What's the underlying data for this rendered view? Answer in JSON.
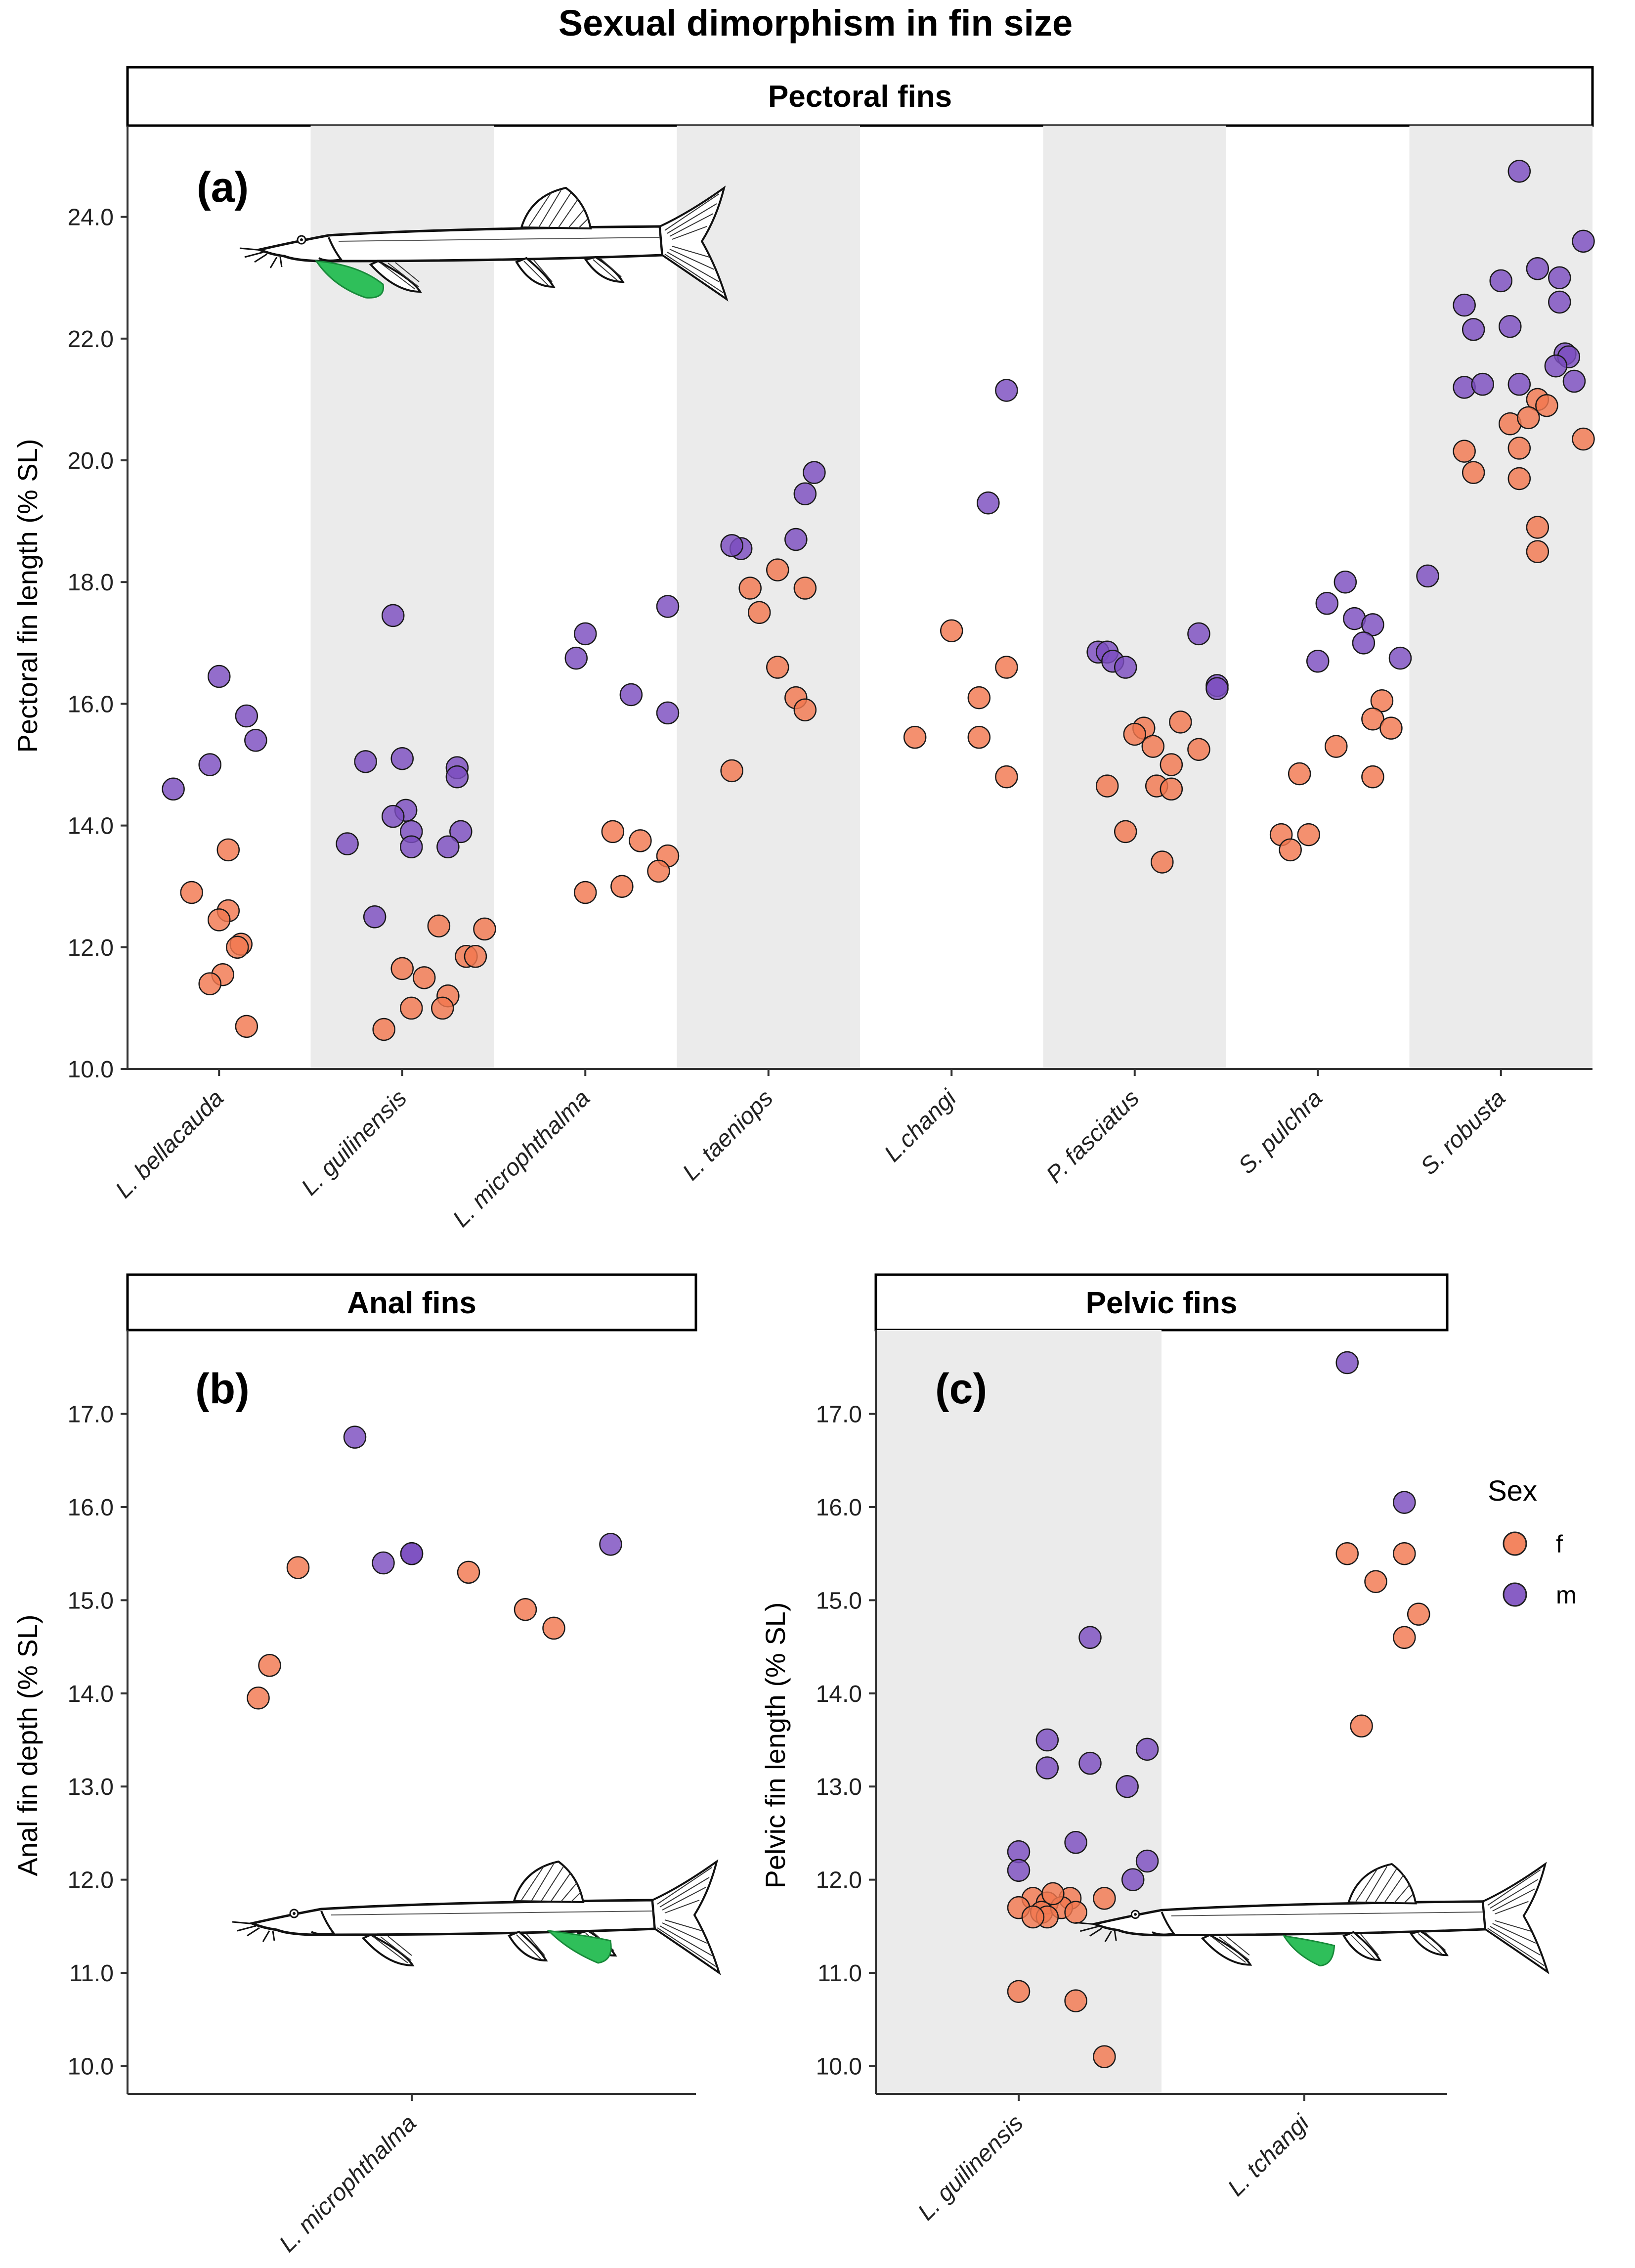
{
  "title": "Sexual dimorphism in fin size",
  "colors": {
    "female": "#F2784F",
    "male": "#7B4DBF",
    "band": "#EBEBEB",
    "fin_highlight": "#2FBF5A"
  },
  "legend": {
    "title": "Sex",
    "entries": [
      {
        "key": "f",
        "label": "f"
      },
      {
        "key": "m",
        "label": "m"
      }
    ]
  },
  "chart_data": [
    {
      "id": "a",
      "type": "scatter",
      "strip": "Pectoral fins",
      "panel_label": "(a)",
      "ylabel": "Pectoral fin length (% SL)",
      "ylim": [
        10.0,
        25.5
      ],
      "yticks": [
        10,
        12,
        14,
        16,
        18,
        20,
        22,
        24
      ],
      "ytick_labels": [
        "10.0",
        "12.0",
        "14.0",
        "16.0",
        "18.0",
        "20.0",
        "22.0",
        "24.0"
      ],
      "shaded_categories": [
        1,
        3,
        5,
        7
      ],
      "categories": [
        "L. bellacauda",
        "L. guilinensis",
        "L. microphthalma",
        "L. taeniops",
        "L.changi",
        "P. fasciatus",
        "S. pulchra",
        "S. robusta"
      ],
      "series": [
        {
          "name": "f",
          "points": [
            [
              0,
              -0.15,
              12.9
            ],
            [
              0,
              0.05,
              13.6
            ],
            [
              0,
              0.05,
              12.6
            ],
            [
              0,
              0.0,
              12.45
            ],
            [
              0,
              0.12,
              12.05
            ],
            [
              0,
              0.1,
              12.0
            ],
            [
              0,
              0.02,
              11.55
            ],
            [
              0,
              -0.05,
              11.4
            ],
            [
              0,
              0.15,
              10.7
            ],
            [
              1,
              0.2,
              12.35
            ],
            [
              1,
              0.45,
              12.3
            ],
            [
              1,
              0.0,
              11.65
            ],
            [
              1,
              0.12,
              11.5
            ],
            [
              1,
              0.35,
              11.85
            ],
            [
              1,
              0.4,
              11.85
            ],
            [
              1,
              0.25,
              11.2
            ],
            [
              1,
              0.05,
              11.0
            ],
            [
              1,
              0.22,
              11.0
            ],
            [
              1,
              -0.1,
              10.65
            ],
            [
              2,
              0.15,
              13.9
            ],
            [
              2,
              0.3,
              13.75
            ],
            [
              2,
              0.0,
              12.9
            ],
            [
              2,
              0.2,
              13.0
            ],
            [
              2,
              0.45,
              13.5
            ],
            [
              2,
              0.4,
              13.25
            ],
            [
              3,
              0.05,
              18.2
            ],
            [
              3,
              -0.1,
              17.9
            ],
            [
              3,
              0.2,
              17.9
            ],
            [
              3,
              -0.05,
              17.5
            ],
            [
              3,
              0.05,
              16.6
            ],
            [
              3,
              0.15,
              16.1
            ],
            [
              3,
              0.2,
              15.9
            ],
            [
              3,
              -0.2,
              14.9
            ],
            [
              4,
              0.0,
              17.2
            ],
            [
              4,
              0.15,
              16.1
            ],
            [
              4,
              0.3,
              16.6
            ],
            [
              4,
              -0.2,
              15.45
            ],
            [
              4,
              0.15,
              15.45
            ],
            [
              4,
              0.3,
              14.8
            ],
            [
              5,
              0.05,
              15.6
            ],
            [
              5,
              0.0,
              15.5
            ],
            [
              5,
              0.25,
              15.7
            ],
            [
              5,
              0.1,
              15.3
            ],
            [
              5,
              0.35,
              15.25
            ],
            [
              5,
              0.2,
              15.0
            ],
            [
              5,
              0.12,
              14.65
            ],
            [
              5,
              -0.15,
              14.65
            ],
            [
              5,
              0.2,
              14.6
            ],
            [
              5,
              -0.05,
              13.9
            ],
            [
              5,
              0.15,
              13.4
            ],
            [
              6,
              0.35,
              16.05
            ],
            [
              6,
              0.3,
              15.75
            ],
            [
              6,
              0.4,
              15.6
            ],
            [
              6,
              0.1,
              15.3
            ],
            [
              6,
              -0.1,
              14.85
            ],
            [
              6,
              0.3,
              14.8
            ],
            [
              6,
              -0.2,
              13.85
            ],
            [
              6,
              -0.05,
              13.85
            ],
            [
              6,
              -0.15,
              13.6
            ],
            [
              7,
              0.2,
              21.0
            ],
            [
              7,
              0.25,
              20.9
            ],
            [
              7,
              0.05,
              20.6
            ],
            [
              7,
              0.15,
              20.7
            ],
            [
              7,
              0.45,
              20.35
            ],
            [
              7,
              -0.2,
              20.15
            ],
            [
              7,
              0.1,
              20.2
            ],
            [
              7,
              -0.15,
              19.8
            ],
            [
              7,
              0.1,
              19.7
            ],
            [
              7,
              0.2,
              18.9
            ],
            [
              7,
              0.2,
              18.5
            ]
          ]
        },
        {
          "name": "m",
          "points": [
            [
              0,
              0.0,
              16.45
            ],
            [
              0,
              0.15,
              15.8
            ],
            [
              0,
              0.2,
              15.4
            ],
            [
              0,
              -0.05,
              15.0
            ],
            [
              0,
              -0.25,
              14.6
            ],
            [
              1,
              -0.05,
              17.45
            ],
            [
              1,
              -0.2,
              15.05
            ],
            [
              1,
              0.0,
              15.1
            ],
            [
              1,
              0.3,
              14.95
            ],
            [
              1,
              0.3,
              14.8
            ],
            [
              1,
              0.02,
              14.25
            ],
            [
              1,
              -0.05,
              14.15
            ],
            [
              1,
              0.05,
              13.9
            ],
            [
              1,
              0.32,
              13.9
            ],
            [
              1,
              -0.3,
              13.7
            ],
            [
              1,
              0.05,
              13.65
            ],
            [
              1,
              0.25,
              13.65
            ],
            [
              1,
              -0.15,
              12.5
            ],
            [
              2,
              0.0,
              17.15
            ],
            [
              2,
              0.45,
              17.6
            ],
            [
              2,
              -0.05,
              16.75
            ],
            [
              2,
              0.25,
              16.15
            ],
            [
              2,
              0.45,
              15.85
            ],
            [
              3,
              0.25,
              19.8
            ],
            [
              3,
              0.2,
              19.45
            ],
            [
              3,
              0.15,
              18.7
            ],
            [
              3,
              -0.15,
              18.55
            ],
            [
              3,
              -0.2,
              18.6
            ],
            [
              4,
              0.3,
              21.15
            ],
            [
              4,
              0.2,
              19.3
            ],
            [
              5,
              -0.2,
              16.85
            ],
            [
              5,
              -0.15,
              16.85
            ],
            [
              5,
              -0.12,
              16.7
            ],
            [
              5,
              -0.05,
              16.6
            ],
            [
              5,
              0.35,
              17.15
            ],
            [
              5,
              0.45,
              16.3
            ],
            [
              5,
              0.45,
              16.25
            ],
            [
              6,
              0.15,
              18.0
            ],
            [
              6,
              0.6,
              18.1
            ],
            [
              6,
              0.05,
              17.65
            ],
            [
              6,
              0.2,
              17.4
            ],
            [
              6,
              0.3,
              17.3
            ],
            [
              6,
              0.25,
              17.0
            ],
            [
              6,
              0.45,
              16.75
            ],
            [
              6,
              0.0,
              16.7
            ],
            [
              7,
              0.1,
              24.75
            ],
            [
              7,
              0.2,
              23.15
            ],
            [
              7,
              0.45,
              23.6
            ],
            [
              7,
              0.0,
              22.95
            ],
            [
              7,
              0.32,
              23.0
            ],
            [
              7,
              -0.2,
              22.55
            ],
            [
              7,
              0.32,
              22.6
            ],
            [
              7,
              -0.15,
              22.15
            ],
            [
              7,
              0.05,
              22.2
            ],
            [
              7,
              0.35,
              21.75
            ],
            [
              7,
              0.37,
              21.7
            ],
            [
              7,
              0.3,
              21.55
            ],
            [
              7,
              -0.2,
              21.2
            ],
            [
              7,
              -0.1,
              21.25
            ],
            [
              7,
              0.1,
              21.25
            ],
            [
              7,
              0.4,
              21.3
            ]
          ]
        }
      ]
    },
    {
      "id": "b",
      "type": "scatter",
      "strip": "Anal fins",
      "panel_label": "(b)",
      "ylabel": "Anal fin depth (% SL)",
      "ylim": [
        9.7,
        17.9
      ],
      "yticks": [
        10,
        11,
        12,
        13,
        14,
        15,
        16,
        17
      ],
      "ytick_labels": [
        "10.0",
        "11.0",
        "12.0",
        "13.0",
        "14.0",
        "15.0",
        "16.0",
        "17.0"
      ],
      "shaded_categories": [],
      "categories": [
        "L. microphthalma"
      ],
      "series": [
        {
          "name": "f",
          "points": [
            [
              0,
              -0.2,
              15.35
            ],
            [
              0,
              0.1,
              15.3
            ],
            [
              0,
              0.2,
              14.9
            ],
            [
              0,
              0.25,
              14.7
            ],
            [
              0,
              -0.25,
              14.3
            ],
            [
              0,
              -0.27,
              13.95
            ]
          ]
        },
        {
          "name": "m",
          "points": [
            [
              0,
              -0.1,
              16.75
            ],
            [
              0,
              0.0,
              15.5
            ],
            [
              0,
              -0.05,
              15.4
            ],
            [
              0,
              0.0,
              15.5
            ],
            [
              0,
              0.35,
              15.6
            ]
          ]
        }
      ]
    },
    {
      "id": "c",
      "type": "scatter",
      "strip": "Pelvic fins",
      "panel_label": "(c)",
      "ylabel": "Pelvic fin length (% SL)",
      "ylim": [
        9.7,
        17.9
      ],
      "yticks": [
        10,
        11,
        12,
        13,
        14,
        15,
        16,
        17
      ],
      "ytick_labels": [
        "10.0",
        "11.0",
        "12.0",
        "13.0",
        "14.0",
        "15.0",
        "16.0",
        "17.0"
      ],
      "shaded_categories": [
        0
      ],
      "categories": [
        "L. guilinensis",
        "L. tchangi"
      ],
      "series": [
        {
          "name": "f",
          "points": [
            [
              0,
              0.05,
              11.8
            ],
            [
              0,
              0.1,
              11.75
            ],
            [
              0,
              0.18,
              11.8
            ],
            [
              0,
              0.08,
              11.65
            ],
            [
              0,
              0.15,
              11.7
            ],
            [
              0,
              0.0,
              11.7
            ],
            [
              0,
              0.1,
              11.6
            ],
            [
              0,
              0.05,
              11.6
            ],
            [
              0,
              0.2,
              11.65
            ],
            [
              0,
              0.3,
              11.8
            ],
            [
              0,
              0.12,
              11.85
            ],
            [
              0,
              0.0,
              10.8
            ],
            [
              0,
              0.2,
              10.7
            ],
            [
              0,
              0.3,
              10.1
            ],
            [
              1,
              0.15,
              15.5
            ],
            [
              1,
              0.35,
              15.5
            ],
            [
              1,
              0.25,
              15.2
            ],
            [
              1,
              0.4,
              14.85
            ],
            [
              1,
              0.35,
              14.6
            ],
            [
              1,
              0.2,
              13.65
            ]
          ]
        },
        {
          "name": "m",
          "points": [
            [
              0,
              0.25,
              14.6
            ],
            [
              0,
              0.1,
              13.5
            ],
            [
              0,
              0.45,
              13.4
            ],
            [
              0,
              0.25,
              13.25
            ],
            [
              0,
              0.1,
              13.2
            ],
            [
              0,
              0.38,
              13.0
            ],
            [
              0,
              0.0,
              12.3
            ],
            [
              0,
              0.2,
              12.4
            ],
            [
              0,
              0.4,
              12.0
            ],
            [
              0,
              0.45,
              12.2
            ],
            [
              0,
              0.0,
              12.1
            ],
            [
              1,
              0.15,
              17.55
            ],
            [
              1,
              0.35,
              16.05
            ]
          ]
        }
      ]
    }
  ]
}
